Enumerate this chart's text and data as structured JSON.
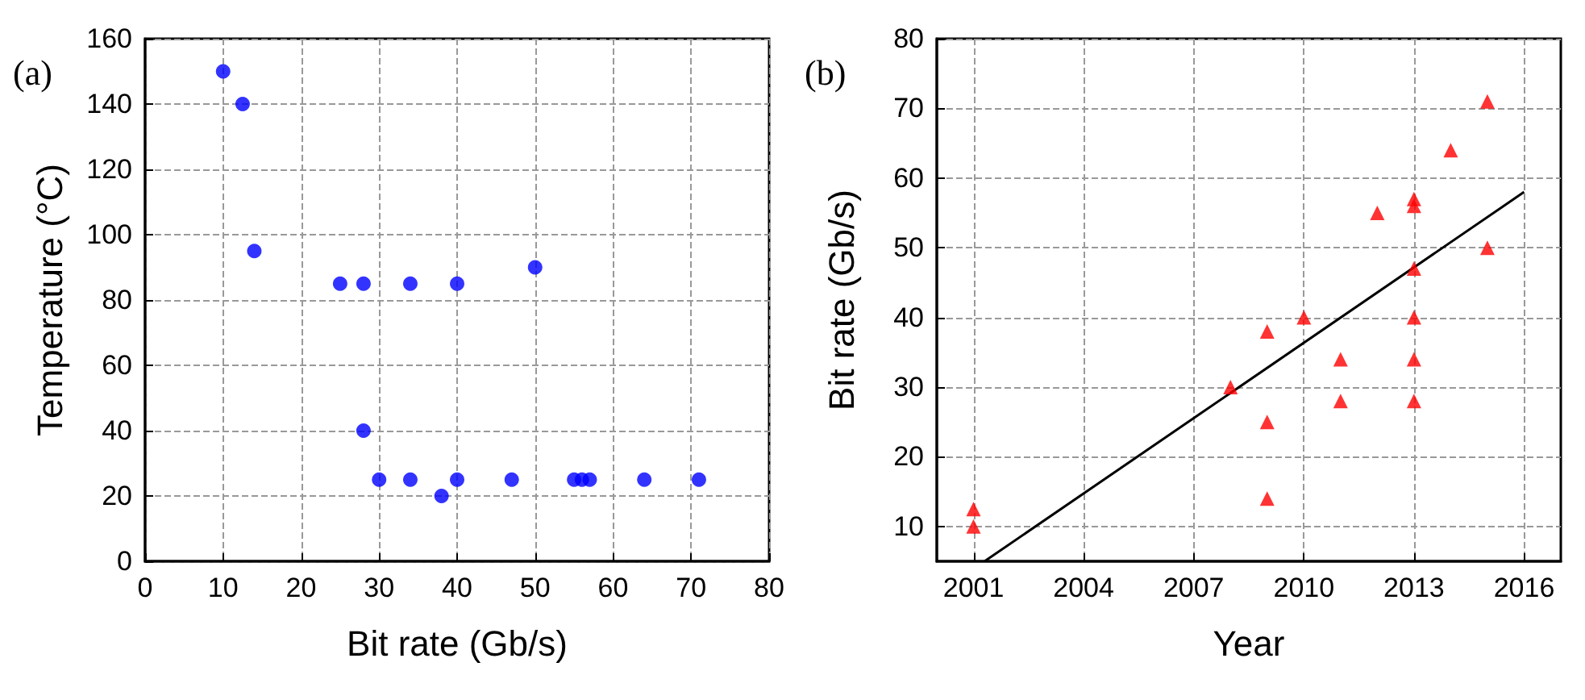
{
  "chart_data": [
    {
      "type": "scatter",
      "xlabel": "Bit rate (Gb/s)",
      "ylabel": "Temperature (°C)",
      "annotations": [
        "(a)"
      ],
      "x": [
        10,
        12.5,
        14,
        25,
        28,
        34,
        40,
        50,
        28,
        30,
        34,
        38,
        40,
        47,
        55,
        56,
        57,
        64,
        71
      ],
      "series": [
        {
          "color": "#0000ff",
          "values": [
            150,
            140,
            95,
            85,
            85,
            85,
            85,
            90,
            40,
            25,
            25,
            20,
            25,
            25,
            25,
            25,
            25,
            25,
            25
          ]
        }
      ],
      "xlim": [
        0,
        80
      ],
      "xticks": [
        0,
        10,
        20,
        30,
        40,
        50,
        60,
        70,
        80
      ],
      "ylim": [
        0,
        160
      ],
      "yticks": [
        0,
        20,
        40,
        60,
        80,
        100,
        120,
        140,
        160
      ],
      "grid": true,
      "marker": "circle"
    },
    {
      "type": "scatter",
      "xlabel": "Year",
      "ylabel": "Bit rate (Gb/s)",
      "annotations": [
        "(b)"
      ],
      "x": [
        2001,
        2001,
        2008,
        2009,
        2009,
        2009,
        2010,
        2011,
        2011,
        2012,
        2013,
        2013,
        2013,
        2013,
        2013,
        2013,
        2014,
        2015,
        2015
      ],
      "series": [
        {
          "color": "#ff0000",
          "values": [
            12.5,
            10,
            30,
            38,
            25,
            14,
            40,
            34,
            28,
            55,
            57,
            56,
            47,
            40,
            34,
            28,
            64,
            71,
            50
          ]
        },
        {
          "type": "line",
          "color": "#000000",
          "marker": "none",
          "x": [
            2001.3,
            2016
          ],
          "values": [
            5,
            58
          ]
        }
      ],
      "xlim": [
        2000,
        2017
      ],
      "xticks": [
        2001,
        2004,
        2007,
        2010,
        2013,
        2016
      ],
      "ylim": [
        5,
        80
      ],
      "yticks": [
        10,
        20,
        30,
        40,
        50,
        60,
        70,
        80
      ],
      "grid": true,
      "marker": "triangle"
    }
  ]
}
